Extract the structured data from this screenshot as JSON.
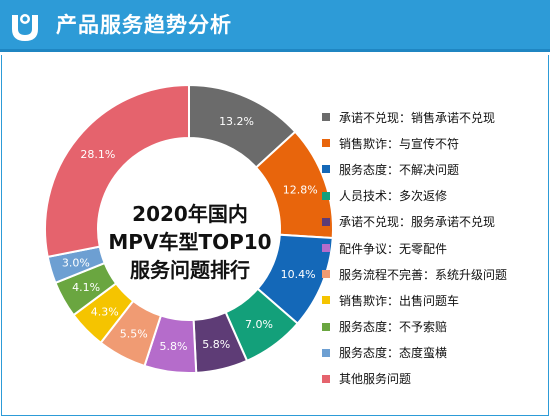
{
  "header": {
    "title": "产品服务趋势分析",
    "bg_color": "#2d9bd7",
    "logo_icon": "brand-logo-icon"
  },
  "center_label": {
    "line1": "2020年国内",
    "line2": "MPV车型TOP10",
    "line3": "服务问题排行"
  },
  "chart_data": {
    "type": "pie",
    "variant": "donut",
    "legend_position": "right",
    "data_labels": [
      "13.2%",
      "12.8%",
      "10.4%",
      "7.0%",
      "5.8%",
      "5.8%",
      "5.5%",
      "4.3%",
      "4.1%",
      "3.0%",
      "28.1%"
    ],
    "slices": [
      {
        "label": "承诺不兑现：销售承诺不兑现",
        "value": 13.2,
        "color": "#6b6b6b"
      },
      {
        "label": "销售欺诈：与宣传不符",
        "value": 12.8,
        "color": "#e8650c"
      },
      {
        "label": "服务态度：不解决问题",
        "value": 10.4,
        "color": "#1468b8"
      },
      {
        "label": "人员技术：多次返修",
        "value": 7.0,
        "color": "#13a07a"
      },
      {
        "label": "承诺不兑现：服务承诺不兑现",
        "value": 5.8,
        "color": "#5e3c76"
      },
      {
        "label": "配件争议：无零配件",
        "value": 5.8,
        "color": "#b56ccb"
      },
      {
        "label": "服务流程不完善：系统升级问题",
        "value": 5.5,
        "color": "#f09b73"
      },
      {
        "label": "销售欺诈：出售问题车",
        "value": 4.3,
        "color": "#f5c400"
      },
      {
        "label": "服务态度：不予索赔",
        "value": 4.1,
        "color": "#6aa640"
      },
      {
        "label": "服务态度：态度蛮横",
        "value": 3.0,
        "color": "#6d9fd2"
      },
      {
        "label": "其他服务问题",
        "value": 28.1,
        "color": "#e5636d"
      }
    ]
  }
}
